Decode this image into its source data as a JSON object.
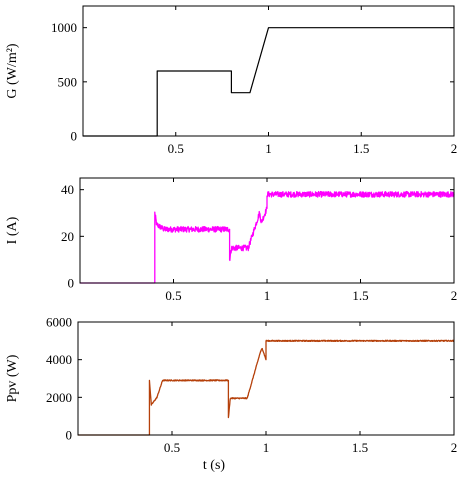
{
  "chart_data": [
    {
      "type": "line",
      "ylabel": "G (W/m²)",
      "xlabel": "",
      "xlim": [
        0,
        2
      ],
      "ylim": [
        0,
        1200
      ],
      "grid": false,
      "xticks": [
        0.5,
        1,
        1.5,
        2
      ],
      "xtick_labels": [
        "0.5",
        "1",
        "1.5",
        "2"
      ],
      "yticks": [
        0,
        500,
        1000
      ],
      "ytick_labels": [
        "0",
        "500",
        "1000"
      ],
      "series": [
        {
          "color": "#000000",
          "noise": 0,
          "x": [
            0,
            0.4,
            0.4,
            0.8,
            0.8,
            0.9,
            1.0,
            2.0
          ],
          "y": [
            0,
            0,
            600,
            600,
            400,
            400,
            1000,
            1000
          ]
        }
      ]
    },
    {
      "type": "line",
      "ylabel": "I (A)",
      "xlabel": "",
      "xlim": [
        0,
        2
      ],
      "ylim": [
        0,
        45
      ],
      "grid": false,
      "xticks": [
        0.5,
        1,
        1.5,
        2
      ],
      "xtick_labels": [
        "0.5",
        "1",
        "1.5",
        "2"
      ],
      "yticks": [
        0,
        20,
        40
      ],
      "ytick_labels": [
        "0",
        "20",
        "40"
      ],
      "series": [
        {
          "color": "#ff00ff",
          "noise": 1.2,
          "x": [
            0,
            0.4,
            0.4,
            0.41,
            0.45,
            0.8,
            0.8,
            0.81,
            0.9,
            0.96,
            0.97,
            1.0,
            1.0,
            2.0
          ],
          "y": [
            0,
            0,
            30,
            25,
            23,
            23,
            10,
            15,
            15,
            30,
            26,
            32,
            38,
            38
          ]
        }
      ]
    },
    {
      "type": "line",
      "ylabel": "Ppv (W)",
      "xlabel": "t (s)",
      "xlim": [
        0,
        2
      ],
      "ylim": [
        0,
        6000
      ],
      "grid": false,
      "xticks": [
        0.5,
        1,
        1.5,
        2
      ],
      "xtick_labels": [
        "0.5",
        "1",
        "1.5",
        "2"
      ],
      "yticks": [
        0,
        2000,
        4000,
        6000
      ],
      "ytick_labels": [
        "0",
        "2000",
        "4000",
        "6000"
      ],
      "series": [
        {
          "color": "#b5400a",
          "noise": 30,
          "x": [
            0,
            0.38,
            0.38,
            0.39,
            0.42,
            0.45,
            0.8,
            0.8,
            0.81,
            0.9,
            0.97,
            0.98,
            1.0,
            1.0,
            2.0
          ],
          "y": [
            0,
            0,
            2900,
            1600,
            2000,
            2900,
            2900,
            900,
            1950,
            1950,
            4400,
            4600,
            4000,
            5000,
            5000
          ]
        }
      ]
    }
  ]
}
